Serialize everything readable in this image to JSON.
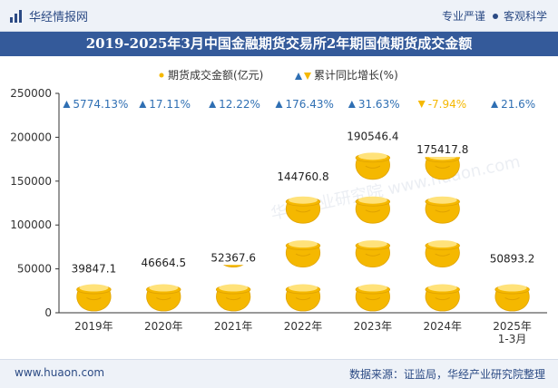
{
  "header": {
    "brand": "华经情报网",
    "tag1": "专业严谨",
    "tag2": "客观科学"
  },
  "title": "2019-2025年3月中国金融期货交易所2年期国债期货成交金额",
  "footer": {
    "url": "www.huaon.com",
    "source": "数据来源：证监局，华经产业研究院整理"
  },
  "watermark": "华经产业研究院 www.huaon.com",
  "colors": {
    "title_bg": "#345a9a",
    "pot": "#f5b800",
    "growth_pos": "#2f6fb3",
    "growth_neg": "#f5b800"
  },
  "chart_data": {
    "type": "bar",
    "categories": [
      "2019年",
      "2020年",
      "2021年",
      "2022年",
      "2023年",
      "2024年",
      "2025年\n1-3月"
    ],
    "ylim": [
      0,
      250000
    ],
    "yticks": [
      "0",
      "50000",
      "100000",
      "150000",
      "200000",
      "250000"
    ],
    "series": [
      {
        "name": "期货成交金额(亿元)",
        "values": [
          39847.1,
          46664.5,
          52367.6,
          144760.8,
          190546.4,
          175417.8,
          50893.2
        ],
        "labels": [
          "39847.1",
          "46664.5",
          "52367.6",
          "144760.8",
          "190546.4",
          "175417.8",
          "50893.2"
        ]
      },
      {
        "name": "累计同比增长(%)",
        "values": [
          5774.13,
          17.11,
          12.22,
          176.43,
          31.63,
          -7.94,
          21.6
        ],
        "labels": [
          "5774.13%",
          "17.11%",
          "12.22%",
          "176.43%",
          "31.63%",
          "-7.94%",
          "21.6%"
        ]
      }
    ],
    "legend_position": "top"
  }
}
